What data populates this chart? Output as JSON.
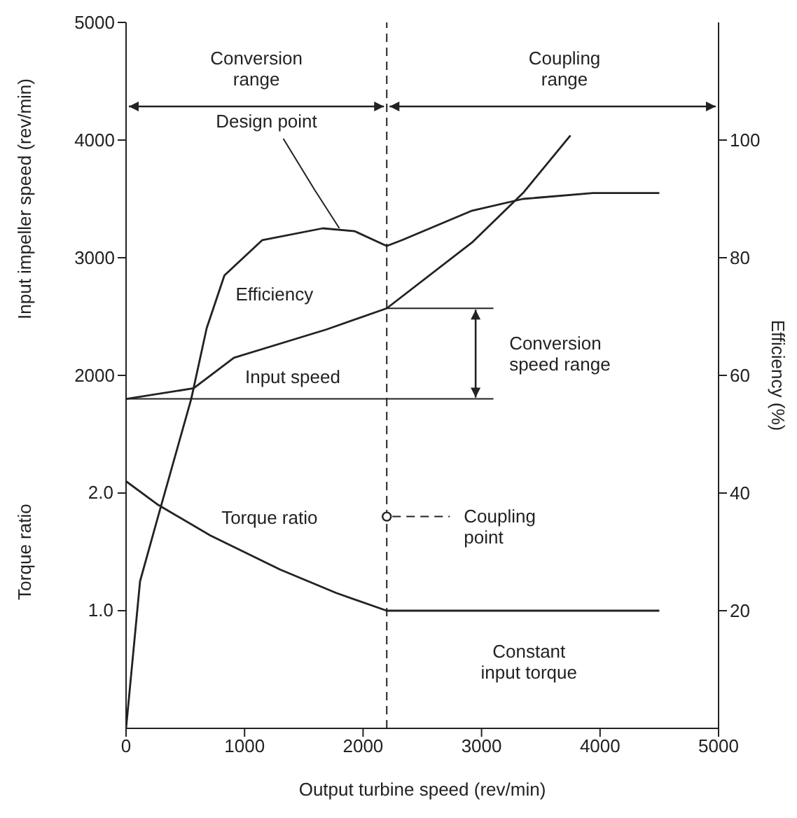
{
  "chart_data": {
    "type": "line",
    "xlabel": "Output turbine speed (rev/min)",
    "ylabel": "Input impeller speed (rev/min)",
    "y2label": "Efficiency (%)",
    "y3label": "Torque ratio",
    "xlim": [
      0,
      5000
    ],
    "xticks": [
      0,
      1000,
      2000,
      3000,
      4000,
      5000
    ],
    "ylim": [
      -1000,
      5000
    ],
    "yticks": [
      2000,
      3000,
      4000,
      5000
    ],
    "y2lim": [
      0,
      120
    ],
    "y2ticks": [
      20,
      40,
      60,
      80,
      100
    ],
    "y3lim": [
      0,
      6
    ],
    "y3ticks": [
      {
        "value": 1,
        "label": "1.0"
      },
      {
        "value": 2,
        "label": "2.0"
      }
    ],
    "marker": "none",
    "line_style": "solid",
    "series": [
      {
        "name": "Efficiency",
        "color": "#222222",
        "axis": "y2",
        "x": [
          0,
          118,
          270,
          550,
          680,
          830,
          1150,
          1660,
          1930,
          2200,
          2330,
          2920,
          3350,
          3940,
          4500
        ],
        "values": [
          0,
          25,
          36,
          56,
          68,
          77,
          83,
          85,
          84.5,
          82,
          83,
          88,
          90,
          91,
          91
        ]
      },
      {
        "name": "Input speed",
        "color": "#222222",
        "axis": "y",
        "x": [
          0,
          570,
          910,
          1690,
          2200,
          2920,
          3350,
          3750
        ],
        "values": [
          1800,
          1890,
          2150,
          2390,
          2570,
          3130,
          3550,
          4040
        ]
      },
      {
        "name": "Torque ratio",
        "color": "#222222",
        "axis": "y3",
        "x": [
          0,
          270,
          710,
          1300,
          1775,
          2200,
          4500
        ],
        "values": [
          2.1,
          1.9,
          1.64,
          1.35,
          1.15,
          1.0,
          1.0
        ]
      },
      {
        "name": "Coupling point",
        "type": "scatter",
        "marker": "circle",
        "color": "#222222",
        "axis": "y3",
        "x": [
          2200
        ],
        "values": [
          1.8
        ]
      }
    ],
    "ref_lines": [
      {
        "axis": "x",
        "value": 2200,
        "line_style": "dashed"
      },
      {
        "axis": "y",
        "value": 1800
      },
      {
        "axis": "y",
        "value": 2570,
        "label": "Conversion speed range"
      }
    ],
    "annotations": [
      "Conversion range",
      "Coupling range",
      {
        "text": "Design point",
        "x": 1800,
        "y": 3250
      },
      "Constant input torque"
    ]
  }
}
